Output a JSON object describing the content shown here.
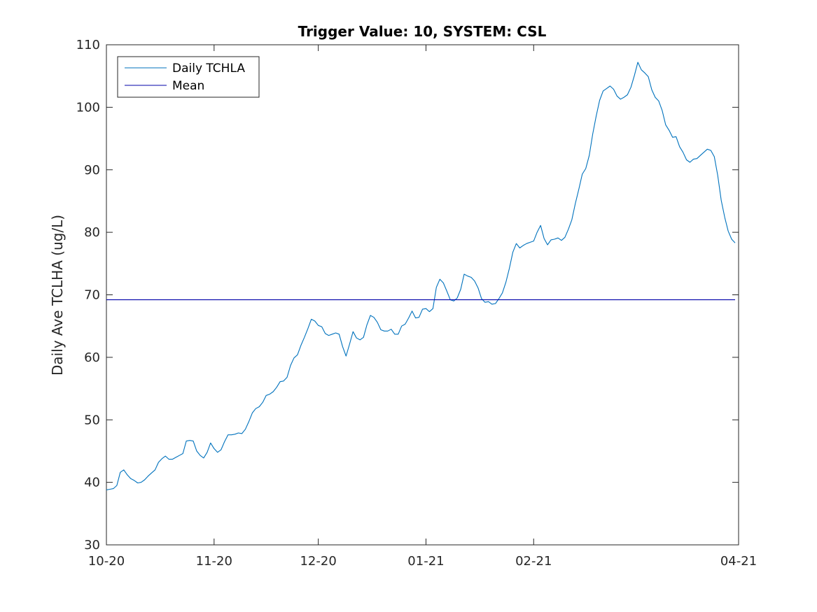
{
  "chart_data": {
    "type": "line",
    "title": "Trigger Value: 10, SYSTEM: CSL",
    "xlabel": "",
    "ylabel": "Daily Ave TCLHA (ug/L)",
    "xlim": [
      "2020-10-01",
      "2021-04-01"
    ],
    "ylim": [
      30,
      110
    ],
    "x_ticks": [
      {
        "date": "2020-10-01",
        "label": "10-20"
      },
      {
        "date": "2020-11-01",
        "label": "11-20"
      },
      {
        "date": "2020-12-01",
        "label": "12-20"
      },
      {
        "date": "2021-01-01",
        "label": "01-21"
      },
      {
        "date": "2021-02-01",
        "label": "02-21"
      },
      {
        "date": "2021-04-01",
        "label": "04-21"
      }
    ],
    "y_ticks": [
      30,
      40,
      50,
      60,
      70,
      80,
      90,
      100,
      110
    ],
    "grid": false,
    "legend_position": "top-left",
    "series": [
      {
        "name": "Daily TCHLA",
        "color": "#0072BD",
        "points": [
          [
            "2020-10-01",
            38.8
          ],
          [
            "2020-10-02",
            38.9
          ],
          [
            "2020-10-03",
            39.0
          ],
          [
            "2020-10-04",
            39.5
          ],
          [
            "2020-10-05",
            41.6
          ],
          [
            "2020-10-06",
            42.0
          ],
          [
            "2020-10-07",
            41.2
          ],
          [
            "2020-10-08",
            40.6
          ],
          [
            "2020-10-09",
            40.3
          ],
          [
            "2020-10-10",
            39.9
          ],
          [
            "2020-10-11",
            40.0
          ],
          [
            "2020-10-12",
            40.4
          ],
          [
            "2020-10-13",
            41.0
          ],
          [
            "2020-10-14",
            41.5
          ],
          [
            "2020-10-15",
            42.0
          ],
          [
            "2020-10-16",
            43.2
          ],
          [
            "2020-10-17",
            43.8
          ],
          [
            "2020-10-18",
            44.2
          ],
          [
            "2020-10-19",
            43.7
          ],
          [
            "2020-10-20",
            43.7
          ],
          [
            "2020-10-21",
            44.0
          ],
          [
            "2020-10-22",
            44.3
          ],
          [
            "2020-10-23",
            44.6
          ],
          [
            "2020-10-24",
            46.6
          ],
          [
            "2020-10-25",
            46.7
          ],
          [
            "2020-10-26",
            46.6
          ],
          [
            "2020-10-27",
            45.0
          ],
          [
            "2020-10-28",
            44.3
          ],
          [
            "2020-10-29",
            43.9
          ],
          [
            "2020-10-30",
            44.8
          ],
          [
            "2020-10-31",
            46.3
          ],
          [
            "2020-11-01",
            45.4
          ],
          [
            "2020-11-02",
            44.8
          ],
          [
            "2020-11-03",
            45.2
          ],
          [
            "2020-11-04",
            46.5
          ],
          [
            "2020-11-05",
            47.6
          ],
          [
            "2020-11-06",
            47.6
          ],
          [
            "2020-11-07",
            47.7
          ],
          [
            "2020-11-08",
            47.9
          ],
          [
            "2020-11-09",
            47.8
          ],
          [
            "2020-11-10",
            48.5
          ],
          [
            "2020-11-11",
            49.7
          ],
          [
            "2020-11-12",
            51.1
          ],
          [
            "2020-11-13",
            51.8
          ],
          [
            "2020-11-14",
            52.1
          ],
          [
            "2020-11-15",
            52.8
          ],
          [
            "2020-11-16",
            53.9
          ],
          [
            "2020-11-17",
            54.1
          ],
          [
            "2020-11-18",
            54.5
          ],
          [
            "2020-11-19",
            55.2
          ],
          [
            "2020-11-20",
            56.1
          ],
          [
            "2020-11-21",
            56.2
          ],
          [
            "2020-11-22",
            56.8
          ],
          [
            "2020-11-23",
            58.7
          ],
          [
            "2020-11-24",
            59.9
          ],
          [
            "2020-11-25",
            60.4
          ],
          [
            "2020-11-26",
            61.9
          ],
          [
            "2020-11-27",
            63.2
          ],
          [
            "2020-11-28",
            64.6
          ],
          [
            "2020-11-29",
            66.1
          ],
          [
            "2020-11-30",
            65.8
          ],
          [
            "2020-12-01",
            65.1
          ],
          [
            "2020-12-02",
            64.9
          ],
          [
            "2020-12-03",
            63.8
          ],
          [
            "2020-12-04",
            63.5
          ],
          [
            "2020-12-05",
            63.7
          ],
          [
            "2020-12-06",
            63.9
          ],
          [
            "2020-12-07",
            63.7
          ],
          [
            "2020-12-08",
            61.7
          ],
          [
            "2020-12-09",
            60.2
          ],
          [
            "2020-12-10",
            62.1
          ],
          [
            "2020-12-11",
            64.1
          ],
          [
            "2020-12-12",
            63.1
          ],
          [
            "2020-12-13",
            62.8
          ],
          [
            "2020-12-14",
            63.2
          ],
          [
            "2020-12-15",
            65.2
          ],
          [
            "2020-12-16",
            66.7
          ],
          [
            "2020-12-17",
            66.4
          ],
          [
            "2020-12-18",
            65.6
          ],
          [
            "2020-12-19",
            64.4
          ],
          [
            "2020-12-20",
            64.2
          ],
          [
            "2020-12-21",
            64.2
          ],
          [
            "2020-12-22",
            64.5
          ],
          [
            "2020-12-23",
            63.7
          ],
          [
            "2020-12-24",
            63.7
          ],
          [
            "2020-12-25",
            65.0
          ],
          [
            "2020-12-26",
            65.3
          ],
          [
            "2020-12-27",
            66.3
          ],
          [
            "2020-12-28",
            67.4
          ],
          [
            "2020-12-29",
            66.3
          ],
          [
            "2020-12-30",
            66.4
          ],
          [
            "2020-12-31",
            67.7
          ],
          [
            "2021-01-01",
            67.8
          ],
          [
            "2021-01-02",
            67.3
          ],
          [
            "2021-01-03",
            67.8
          ],
          [
            "2021-01-04",
            71.2
          ],
          [
            "2021-01-05",
            72.5
          ],
          [
            "2021-01-06",
            71.9
          ],
          [
            "2021-01-07",
            70.6
          ],
          [
            "2021-01-08",
            69.2
          ],
          [
            "2021-01-09",
            69.0
          ],
          [
            "2021-01-10",
            69.5
          ],
          [
            "2021-01-11",
            70.9
          ],
          [
            "2021-01-12",
            73.3
          ],
          [
            "2021-01-13",
            73.0
          ],
          [
            "2021-01-14",
            72.8
          ],
          [
            "2021-01-15",
            72.2
          ],
          [
            "2021-01-16",
            71.1
          ],
          [
            "2021-01-17",
            69.4
          ],
          [
            "2021-01-18",
            68.8
          ],
          [
            "2021-01-19",
            68.9
          ],
          [
            "2021-01-20",
            68.5
          ],
          [
            "2021-01-21",
            68.6
          ],
          [
            "2021-01-22",
            69.4
          ],
          [
            "2021-01-23",
            70.3
          ],
          [
            "2021-01-24",
            72.0
          ],
          [
            "2021-01-25",
            74.2
          ],
          [
            "2021-01-26",
            76.8
          ],
          [
            "2021-01-27",
            78.2
          ],
          [
            "2021-01-28",
            77.5
          ],
          [
            "2021-01-29",
            77.9
          ],
          [
            "2021-01-30",
            78.2
          ],
          [
            "2021-01-31",
            78.4
          ],
          [
            "2021-02-01",
            78.6
          ],
          [
            "2021-02-02",
            80.0
          ],
          [
            "2021-02-03",
            81.1
          ],
          [
            "2021-02-04",
            79.0
          ],
          [
            "2021-02-05",
            78.0
          ],
          [
            "2021-02-06",
            78.8
          ],
          [
            "2021-02-07",
            78.9
          ],
          [
            "2021-02-08",
            79.1
          ],
          [
            "2021-02-09",
            78.7
          ],
          [
            "2021-02-10",
            79.2
          ],
          [
            "2021-02-11",
            80.5
          ],
          [
            "2021-02-12",
            82.0
          ],
          [
            "2021-02-13",
            84.6
          ],
          [
            "2021-02-14",
            86.9
          ],
          [
            "2021-02-15",
            89.3
          ],
          [
            "2021-02-16",
            90.2
          ],
          [
            "2021-02-17",
            92.3
          ],
          [
            "2021-02-18",
            95.7
          ],
          [
            "2021-02-19",
            98.6
          ],
          [
            "2021-02-20",
            101.1
          ],
          [
            "2021-02-21",
            102.6
          ],
          [
            "2021-02-22",
            103.0
          ],
          [
            "2021-02-23",
            103.4
          ],
          [
            "2021-02-24",
            102.9
          ],
          [
            "2021-02-25",
            101.8
          ],
          [
            "2021-02-26",
            101.3
          ],
          [
            "2021-02-27",
            101.6
          ],
          [
            "2021-02-28",
            102.0
          ],
          [
            "2021-03-01",
            103.2
          ],
          [
            "2021-03-02",
            105.1
          ],
          [
            "2021-03-03",
            107.2
          ],
          [
            "2021-03-04",
            106.0
          ],
          [
            "2021-03-05",
            105.5
          ],
          [
            "2021-03-06",
            104.9
          ],
          [
            "2021-03-07",
            102.8
          ],
          [
            "2021-03-08",
            101.6
          ],
          [
            "2021-03-09",
            101.0
          ],
          [
            "2021-03-10",
            99.5
          ],
          [
            "2021-03-11",
            97.2
          ],
          [
            "2021-03-12",
            96.3
          ],
          [
            "2021-03-13",
            95.2
          ],
          [
            "2021-03-14",
            95.3
          ],
          [
            "2021-03-15",
            93.7
          ],
          [
            "2021-03-16",
            92.8
          ],
          [
            "2021-03-17",
            91.6
          ],
          [
            "2021-03-18",
            91.2
          ],
          [
            "2021-03-19",
            91.7
          ],
          [
            "2021-03-20",
            91.8
          ],
          [
            "2021-03-21",
            92.3
          ],
          [
            "2021-03-22",
            92.8
          ],
          [
            "2021-03-23",
            93.3
          ],
          [
            "2021-03-24",
            93.1
          ],
          [
            "2021-03-25",
            92.1
          ],
          [
            "2021-03-26",
            89.1
          ],
          [
            "2021-03-27",
            85.1
          ],
          [
            "2021-03-28",
            82.4
          ],
          [
            "2021-03-29",
            80.2
          ],
          [
            "2021-03-30",
            78.9
          ],
          [
            "2021-03-31",
            78.3
          ]
        ]
      },
      {
        "name": "Mean",
        "color": "#0000AA",
        "points": [
          [
            "2020-10-01",
            69.2
          ],
          [
            "2021-03-31",
            69.2
          ]
        ]
      }
    ]
  }
}
